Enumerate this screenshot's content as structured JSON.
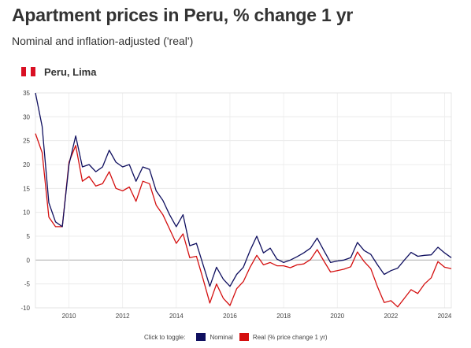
{
  "header": {
    "title": "Apartment prices in Peru, % change 1 yr",
    "subtitle": "Nominal and inflation-adjusted ('real')",
    "country": "Peru, Lima",
    "flag_colors": [
      "#d91023",
      "#ffffff",
      "#d91023"
    ]
  },
  "legend": {
    "hint": "Click to toggle:",
    "items": [
      {
        "label": "Nominal",
        "color": "#0f0f5f"
      },
      {
        "label": "Real (% price change 1 yr)",
        "color": "#d40f0f"
      }
    ]
  },
  "chart_data": {
    "type": "line",
    "title": "",
    "xlabel": "",
    "ylabel": "",
    "xlim": [
      2008.75,
      2024.25
    ],
    "ylim": [
      -10,
      35
    ],
    "yticks": [
      -10,
      -5,
      0,
      5,
      10,
      15,
      20,
      25,
      30,
      35
    ],
    "xticks": [
      2010,
      2012,
      2014,
      2016,
      2018,
      2020,
      2022,
      2024
    ],
    "grid": true,
    "legend_position": "bottom",
    "series": [
      {
        "name": "Nominal",
        "color": "#0f0f5f",
        "x": [
          2008.75,
          2009.0,
          2009.25,
          2009.5,
          2009.75,
          2010.0,
          2010.25,
          2010.5,
          2010.75,
          2011.0,
          2011.25,
          2011.5,
          2011.75,
          2012.0,
          2012.25,
          2012.5,
          2012.75,
          2013.0,
          2013.25,
          2013.5,
          2013.75,
          2014.0,
          2014.25,
          2014.5,
          2014.75,
          2015.0,
          2015.25,
          2015.5,
          2015.75,
          2016.0,
          2016.25,
          2016.5,
          2016.75,
          2017.0,
          2017.25,
          2017.5,
          2017.75,
          2018.0,
          2018.25,
          2018.5,
          2018.75,
          2019.0,
          2019.25,
          2019.5,
          2019.75,
          2020.0,
          2020.25,
          2020.5,
          2020.75,
          2021.0,
          2021.25,
          2021.5,
          2021.75,
          2022.0,
          2022.25,
          2022.5,
          2022.75,
          2023.0,
          2023.25,
          2023.5,
          2023.75,
          2024.0,
          2024.25
        ],
        "y": [
          35,
          28,
          12,
          8,
          7,
          20,
          26,
          19.5,
          20,
          18.5,
          19.5,
          23,
          20.5,
          19.5,
          20,
          16.5,
          19.5,
          19,
          14.5,
          12.5,
          9.5,
          7,
          9.5,
          3,
          3.5,
          -1,
          -5.5,
          -1.5,
          -4,
          -5.5,
          -3,
          -1.5,
          2,
          5,
          1.5,
          2.5,
          0.2,
          -0.5,
          0,
          0.7,
          1.5,
          2.5,
          4.6,
          2,
          -0.5,
          -0.2,
          0,
          0.5,
          3.7,
          2,
          1.2,
          -1,
          -3,
          -2.2,
          -1.7,
          0,
          1.6,
          0.8,
          1,
          1.1,
          2.7,
          1.5,
          0.5
        ]
      },
      {
        "name": "Real (% price change 1 yr)",
        "color": "#d40f0f",
        "x": [
          2008.75,
          2009.0,
          2009.25,
          2009.5,
          2009.75,
          2010.0,
          2010.25,
          2010.5,
          2010.75,
          2011.0,
          2011.25,
          2011.5,
          2011.75,
          2012.0,
          2012.25,
          2012.5,
          2012.75,
          2013.0,
          2013.25,
          2013.5,
          2013.75,
          2014.0,
          2014.25,
          2014.5,
          2014.75,
          2015.0,
          2015.25,
          2015.5,
          2015.75,
          2016.0,
          2016.25,
          2016.5,
          2016.75,
          2017.0,
          2017.25,
          2017.5,
          2017.75,
          2018.0,
          2018.25,
          2018.5,
          2018.75,
          2019.0,
          2019.25,
          2019.5,
          2019.75,
          2020.0,
          2020.25,
          2020.5,
          2020.75,
          2021.0,
          2021.25,
          2021.5,
          2021.75,
          2022.0,
          2022.25,
          2022.5,
          2022.75,
          2023.0,
          2023.25,
          2023.5,
          2023.75,
          2024.0,
          2024.25
        ],
        "y": [
          26.5,
          22.5,
          9,
          7,
          7,
          20.5,
          24,
          16.5,
          17.5,
          15.5,
          16,
          18.5,
          15,
          14.5,
          15.3,
          12.3,
          16.5,
          16,
          11.5,
          9.5,
          6.5,
          3.5,
          5.5,
          0.5,
          0.8,
          -4,
          -9,
          -5,
          -8,
          -9.5,
          -6,
          -4.5,
          -1.5,
          1,
          -1,
          -0.5,
          -1.2,
          -1.2,
          -1.6,
          -1,
          -0.8,
          0.1,
          2.2,
          -0.2,
          -2.5,
          -2.2,
          -1.9,
          -1.4,
          1.7,
          -0.3,
          -1.8,
          -5.6,
          -8.9,
          -8.5,
          -9.8,
          -8,
          -6.2,
          -7,
          -5,
          -3.7,
          -0.3,
          -1.5,
          -1.8
        ]
      }
    ]
  }
}
